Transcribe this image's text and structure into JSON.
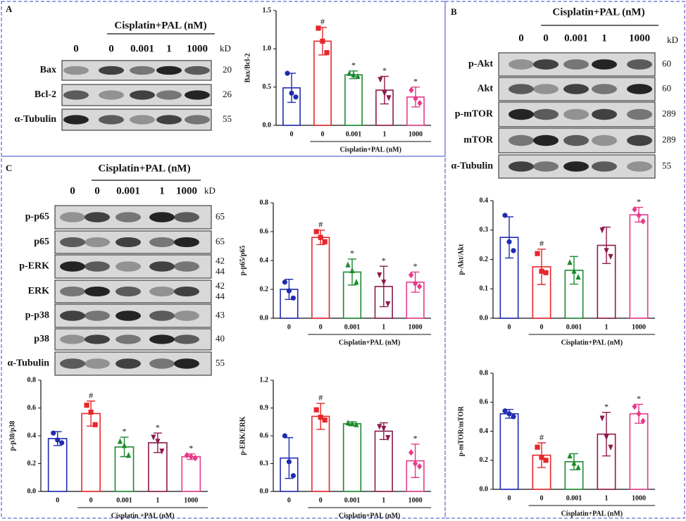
{
  "blots": [
    {
      "panel": "A",
      "header": "Cisplatin+PAL (nM)",
      "lanes": [
        "0",
        "0",
        "0.001",
        "1",
        "1000"
      ],
      "kd_header": "kD",
      "rows": [
        {
          "label": "Bax",
          "kd": [
            "20"
          ]
        },
        {
          "label": "Bcl-2",
          "kd": [
            "26"
          ]
        },
        {
          "label": "α-Tubulin",
          "kd": [
            "55"
          ]
        }
      ]
    },
    {
      "panel": "B",
      "header": "Cisplatin+PAL (nM)",
      "lanes": [
        "0",
        "0",
        "0.001",
        "1",
        "1000"
      ],
      "kd_header": "kD",
      "rows": [
        {
          "label": "p-Akt",
          "kd": [
            "60"
          ]
        },
        {
          "label": "Akt",
          "kd": [
            "60"
          ]
        },
        {
          "label": "p-mTOR",
          "kd": [
            "289"
          ]
        },
        {
          "label": "mTOR",
          "kd": [
            "289"
          ]
        },
        {
          "label": "α-Tubulin",
          "kd": [
            "55"
          ]
        }
      ]
    },
    {
      "panel": "C",
      "header": "Cisplatin+PAL (nM)",
      "lanes": [
        "0",
        "0",
        "0.001",
        "1",
        "1000"
      ],
      "kd_header": "kD",
      "rows": [
        {
          "label": "p-p65",
          "kd": [
            "65"
          ]
        },
        {
          "label": "p65",
          "kd": [
            "65"
          ]
        },
        {
          "label": "p-ERK",
          "kd": [
            "42",
            "44"
          ]
        },
        {
          "label": "ERK",
          "kd": [
            "42",
            "44"
          ]
        },
        {
          "label": "p-p38",
          "kd": [
            "43"
          ]
        },
        {
          "label": "p38",
          "kd": [
            "40"
          ]
        },
        {
          "label": "α-Tubulin",
          "kd": [
            "55"
          ]
        }
      ]
    }
  ],
  "chart_data": [
    {
      "type": "bar",
      "ylabel": "Bax/Bcl-2",
      "categories": [
        "0",
        "0",
        "0.001",
        "1",
        "1000"
      ],
      "group_label": "Cisplatin+PAL (nM)",
      "values": [
        0.49,
        1.1,
        0.66,
        0.46,
        0.37
      ],
      "errors": [
        0.19,
        0.18,
        0.05,
        0.18,
        0.13
      ],
      "points": [
        [
          0.68,
          0.42,
          0.37
        ],
        [
          1.27,
          1.1,
          0.95
        ],
        [
          0.68,
          0.66,
          0.64
        ],
        [
          0.6,
          0.42,
          0.36
        ],
        [
          0.46,
          0.35,
          0.29
        ]
      ],
      "annotations": [
        null,
        "#",
        "*",
        "*",
        "*"
      ],
      "colors": [
        "#1f2bb0",
        "#e8262a",
        "#1b8a2e",
        "#8b1a4a",
        "#e8398a"
      ],
      "markers": [
        "circle",
        "square",
        "triangle",
        "triangle-down",
        "diamond"
      ],
      "ylim": [
        0,
        1.5
      ],
      "yticks": [
        {
          "value": 0,
          "label": "0.0"
        },
        0.5,
        {
          "value": 1,
          "label": "1.0"
        },
        1.5
      ]
    },
    {
      "type": "bar",
      "ylabel": "p-p65/p65",
      "categories": [
        "0",
        "0",
        "0.001",
        "1",
        "1000"
      ],
      "group_label": "Cisplatin+PAL (nM)",
      "values": [
        0.2,
        0.56,
        0.32,
        0.22,
        0.25
      ],
      "errors": [
        0.07,
        0.05,
        0.09,
        0.14,
        0.07
      ],
      "points": [
        [
          0.25,
          0.19,
          0.14
        ],
        [
          0.6,
          0.56,
          0.53
        ],
        [
          0.37,
          0.33,
          0.25
        ],
        [
          0.3,
          0.25,
          0.1
        ],
        [
          0.3,
          0.24,
          0.22
        ]
      ],
      "annotations": [
        null,
        "#",
        "*",
        "*",
        "*"
      ],
      "colors": [
        "#1f2bb0",
        "#e8262a",
        "#1b8a2e",
        "#8b1a4a",
        "#e8398a"
      ],
      "markers": [
        "circle",
        "square",
        "triangle",
        "triangle-down",
        "diamond"
      ],
      "ylim": [
        0,
        0.8
      ],
      "yticks": [
        {
          "value": 0,
          "label": "0.0"
        },
        0.2,
        0.4,
        0.6,
        0.8
      ]
    },
    {
      "type": "bar",
      "ylabel": "p-p38/p38",
      "categories": [
        "0",
        "0",
        "0.001",
        "1",
        "1000"
      ],
      "group_label": "Cisplatin +PAL (nM)",
      "values": [
        0.38,
        0.56,
        0.32,
        0.35,
        0.25
      ],
      "errors": [
        0.05,
        0.09,
        0.07,
        0.07,
        0.02
      ],
      "points": [
        [
          0.42,
          0.37,
          0.35
        ],
        [
          0.62,
          0.57,
          0.48
        ],
        [
          0.36,
          0.33,
          0.26
        ],
        [
          0.39,
          0.36,
          0.29
        ],
        [
          0.26,
          0.25,
          0.24
        ]
      ],
      "annotations": [
        null,
        "#",
        "*",
        "*",
        "*"
      ],
      "colors": [
        "#1f2bb0",
        "#e8262a",
        "#1b8a2e",
        "#8b1a4a",
        "#e8398a"
      ],
      "markers": [
        "circle",
        "square",
        "triangle",
        "triangle-down",
        "diamond"
      ],
      "ylim": [
        0,
        0.8
      ],
      "yticks": [
        {
          "value": 0,
          "label": "0.0"
        },
        0.2,
        0.4,
        0.6,
        0.8
      ]
    },
    {
      "type": "bar",
      "ylabel": "p-ERK/ERK",
      "categories": [
        "0",
        "0",
        "0.001",
        "1",
        "1000"
      ],
      "group_label": "Cisplatin+PAL (nM)",
      "values": [
        0.36,
        0.81,
        0.73,
        0.65,
        0.33
      ],
      "errors": [
        0.22,
        0.14,
        0.02,
        0.09,
        0.18
      ],
      "points": [
        [
          0.6,
          0.32,
          0.17
        ],
        [
          0.88,
          0.8,
          0.77
        ],
        [
          0.74,
          0.73,
          0.72
        ],
        [
          0.7,
          0.68,
          0.58
        ],
        [
          0.42,
          0.3,
          0.27
        ]
      ],
      "annotations": [
        null,
        "#",
        null,
        null,
        "*"
      ],
      "colors": [
        "#1f2bb0",
        "#e8262a",
        "#1b8a2e",
        "#8b1a4a",
        "#e8398a"
      ],
      "markers": [
        "circle",
        "square",
        "triangle",
        "triangle-down",
        "diamond"
      ],
      "ylim": [
        0,
        1.2
      ],
      "yticks": [
        {
          "value": 0,
          "label": "0.0"
        },
        0.3,
        0.6,
        0.9,
        1.2
      ]
    },
    {
      "type": "bar",
      "ylabel": "p-Akt/Akt",
      "categories": [
        "0",
        "0",
        "0.001",
        "1",
        "1000"
      ],
      "group_label": "Cisplatin+PAL (nM)",
      "values": [
        0.275,
        0.175,
        0.163,
        0.248,
        0.352
      ],
      "errors": [
        0.07,
        0.06,
        0.047,
        0.062,
        0.025
      ],
      "points": [
        [
          0.35,
          0.26,
          0.23
        ],
        [
          0.22,
          0.16,
          0.155
        ],
        [
          0.19,
          0.16,
          0.14
        ],
        [
          0.3,
          0.23,
          0.21
        ],
        [
          0.37,
          0.35,
          0.33
        ]
      ],
      "annotations": [
        null,
        "#",
        null,
        null,
        "*"
      ],
      "colors": [
        "#1f2bb0",
        "#e8262a",
        "#1b8a2e",
        "#8b1a4a",
        "#e8398a"
      ],
      "markers": [
        "circle",
        "square",
        "triangle",
        "triangle-down",
        "diamond"
      ],
      "ylim": [
        0,
        0.4
      ],
      "yticks": [
        {
          "value": 0,
          "label": "0.0"
        },
        0.1,
        0.2,
        0.3,
        0.4
      ]
    },
    {
      "type": "bar",
      "ylabel": "p-mTOR/mTOR",
      "categories": [
        "0",
        "0",
        "0.001",
        "1",
        "1000"
      ],
      "group_label": "Cisplatin+PAL (nM)",
      "values": [
        0.52,
        0.235,
        0.19,
        0.38,
        0.52
      ],
      "errors": [
        0.03,
        0.085,
        0.055,
        0.15,
        0.065
      ],
      "points": [
        [
          0.54,
          0.52,
          0.5
        ],
        [
          0.29,
          0.22,
          0.2
        ],
        [
          0.23,
          0.18,
          0.15
        ],
        [
          0.49,
          0.36,
          0.29
        ],
        [
          0.57,
          0.52,
          0.47
        ]
      ],
      "annotations": [
        null,
        "#",
        null,
        "*",
        "*"
      ],
      "colors": [
        "#1f2bb0",
        "#e8262a",
        "#1b8a2e",
        "#8b1a4a",
        "#e8398a"
      ],
      "markers": [
        "circle",
        "square",
        "triangle",
        "triangle-down",
        "diamond"
      ],
      "ylim": [
        0,
        0.8
      ],
      "yticks": [
        {
          "value": 0,
          "label": "0.0"
        },
        0.2,
        0.4,
        0.6,
        0.8
      ]
    }
  ]
}
